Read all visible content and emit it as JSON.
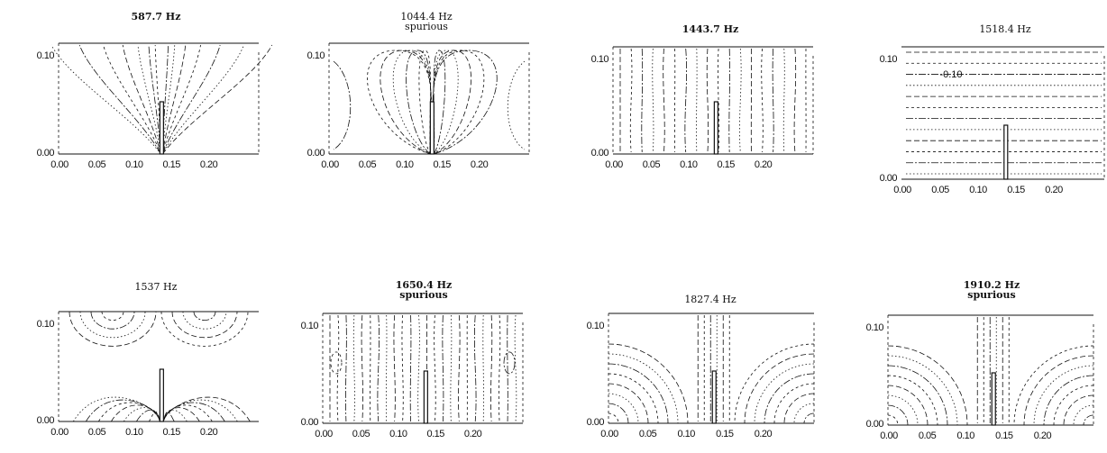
{
  "figure": {
    "panels": [
      {
        "title": "587.7 Hz",
        "subtitle": "",
        "bold": true,
        "style": "lobes-up",
        "bottom_axis": true,
        "left_axis": true,
        "right_axis": true,
        "yticks": [
          "0.10",
          "0.00"
        ],
        "xticks": [
          "0.00",
          "0.05",
          "0.10",
          "0.15",
          "0.20"
        ],
        "label": ""
      },
      {
        "title": "1044.4 Hz",
        "subtitle": "spurious",
        "bold": false,
        "style": "balloons",
        "bottom_axis": true,
        "left_axis": true,
        "right_axis": true,
        "yticks": [
          "0.10",
          "0.00"
        ],
        "xticks": [
          "0.00",
          "0.05",
          "0.10",
          "0.15",
          "0.20"
        ],
        "label": ""
      },
      {
        "title": "1443.7 Hz",
        "subtitle": "",
        "bold": true,
        "style": "vertical",
        "bottom_axis": true,
        "left_axis": true,
        "right_axis": true,
        "yticks": [
          "0.10",
          "0.00"
        ],
        "xticks": [
          "0.00",
          "0.05",
          "0.10",
          "0.15",
          "0.20"
        ],
        "label": ""
      },
      {
        "title": "1518.4 Hz",
        "subtitle": "",
        "bold": false,
        "style": "horizontal",
        "bottom_axis": true,
        "left_axis": false,
        "right_axis": true,
        "yticks": [
          "0.10",
          "0.00"
        ],
        "xticks": [
          "0.00",
          "0.05",
          "0.10",
          "0.15",
          "0.20"
        ],
        "label": "-0.10"
      },
      {
        "title": "1537 Hz",
        "subtitle": "",
        "bold": false,
        "style": "arcs",
        "bottom_axis": true,
        "left_axis": true,
        "right_axis": false,
        "yticks": [
          "0.10",
          "0.00"
        ],
        "xticks": [
          "0.00",
          "0.05",
          "0.10",
          "0.15",
          "0.20"
        ],
        "label": ""
      },
      {
        "title": "1650.4 Hz",
        "subtitle": "spurious",
        "bold": true,
        "style": "vertical-dense",
        "bottom_axis": true,
        "left_axis": true,
        "right_axis": true,
        "yticks": [
          "0.10",
          "0.00"
        ],
        "xticks": [
          "0.00",
          "0.05",
          "0.10",
          "0.15",
          "0.20"
        ],
        "label": ""
      },
      {
        "title": "1827.4 Hz",
        "subtitle": "",
        "bold": false,
        "style": "corners",
        "bottom_axis": true,
        "left_axis": true,
        "right_axis": true,
        "yticks": [
          "0.10",
          "0.00"
        ],
        "xticks": [
          "0.00",
          "0.05",
          "0.10",
          "0.15",
          "0.20"
        ],
        "label": ""
      },
      {
        "title": "1910.2 Hz",
        "subtitle": "spurious",
        "bold": true,
        "style": "corners2",
        "bottom_axis": true,
        "left_axis": true,
        "right_axis": true,
        "yticks": [
          "0.10",
          "0.00"
        ],
        "xticks": [
          "0.00",
          "0.05",
          "0.10",
          "0.15",
          "0.20"
        ],
        "label": ""
      }
    ]
  }
}
